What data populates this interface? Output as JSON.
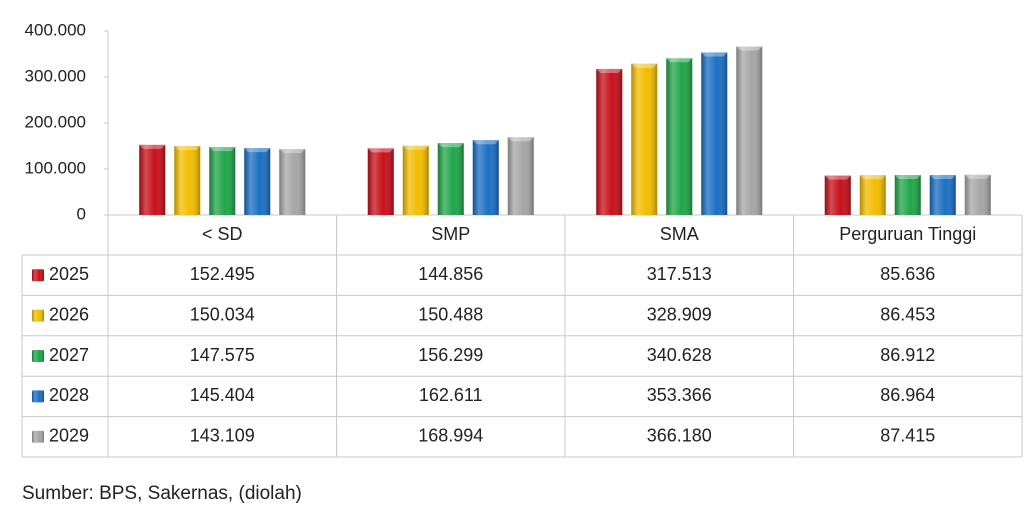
{
  "chart_data": {
    "type": "bar",
    "categories": [
      "< SD",
      "SMP",
      "SMA",
      "Perguruan Tinggi"
    ],
    "ylim": [
      0,
      400000
    ],
    "yticks": [
      0,
      {
        "value": 100000,
        "label": "100.000"
      },
      {
        "value": 200000,
        "label": "200.000"
      },
      {
        "value": 300000,
        "label": "300.000"
      },
      {
        "value": 400000,
        "label": "400.000"
      }
    ],
    "series": [
      {
        "name": "2025",
        "color": "#c8101a",
        "values": [
          152495,
          144856,
          317513,
          85636
        ],
        "value_labels": [
          "152.495",
          "144.856",
          "317.513",
          "85.636"
        ]
      },
      {
        "name": "2026",
        "color": "#f2bd00",
        "values": [
          150034,
          150488,
          328909,
          86453
        ],
        "value_labels": [
          "150.034",
          "150.488",
          "328.909",
          "86.453"
        ]
      },
      {
        "name": "2027",
        "color": "#1fa64a",
        "values": [
          147575,
          156299,
          340628,
          86912
        ],
        "value_labels": [
          "147.575",
          "156.299",
          "340.628",
          "86.912"
        ]
      },
      {
        "name": "2028",
        "color": "#1a6fc4",
        "values": [
          145404,
          162611,
          353366,
          86964
        ],
        "value_labels": [
          "145.404",
          "162.611",
          "353.366",
          "86.964"
        ]
      },
      {
        "name": "2029",
        "color": "#a6a6a6",
        "values": [
          143109,
          168994,
          366180,
          87415
        ],
        "value_labels": [
          "143.109",
          "168.994",
          "366.180",
          "87.415"
        ]
      }
    ]
  },
  "source": "Sumber: BPS, Sakernas, (diolah)"
}
